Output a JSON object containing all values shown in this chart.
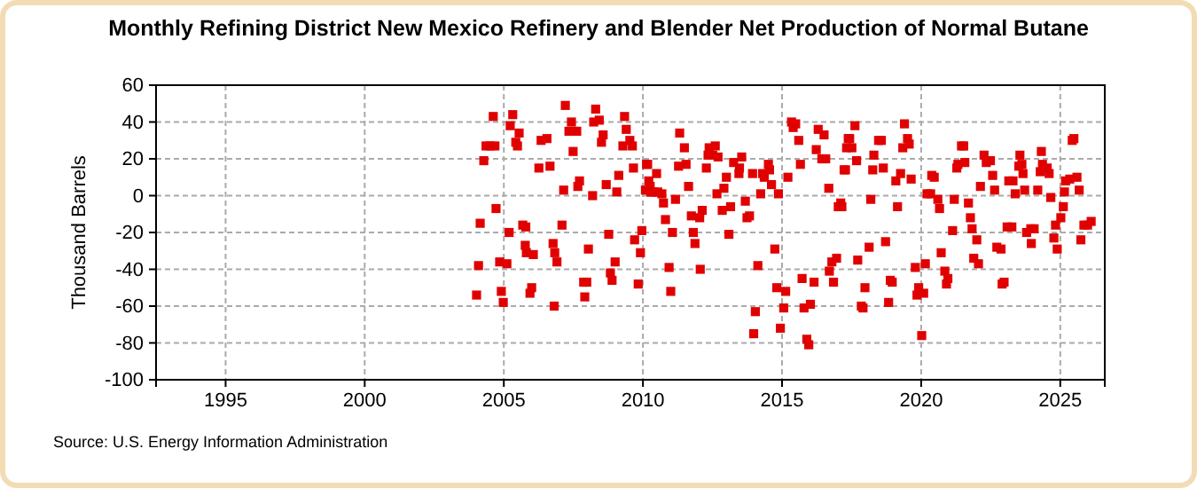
{
  "chart_data": {
    "type": "scatter",
    "title": "Monthly Refining District New Mexico Refinery and Blender Net Production of Normal Butane",
    "ylabel": "Thousand Barrels",
    "annotations": [
      "Source: U.S. Energy Information Administration"
    ],
    "xlim": [
      1992.5,
      2026.6
    ],
    "xticks": [
      1995,
      2000,
      2005,
      2010,
      2015,
      2020,
      2025
    ],
    "ylim": [
      -100,
      60
    ],
    "yticks": [
      -100,
      -80,
      -60,
      -40,
      -20,
      0,
      20,
      40,
      60
    ],
    "grid": true,
    "marker": "square",
    "series": [
      {
        "color": "#e00000",
        "x": [
          2004.02,
          2004.09,
          2004.15,
          2004.28,
          2004.36,
          2004.51,
          2004.62,
          2004.68,
          2004.72,
          2004.85,
          2004.91,
          2004.98,
          2005.11,
          2005.19,
          2005.23,
          2005.32,
          2005.43,
          2005.49,
          2005.55,
          2005.68,
          2005.77,
          2005.79,
          2005.81,
          2005.94,
          2006.0,
          2006.06,
          2006.26,
          2006.34,
          2006.55,
          2006.66,
          2006.77,
          2006.81,
          2006.83,
          2006.91,
          2007.09,
          2007.15,
          2007.21,
          2007.34,
          2007.43,
          2007.49,
          2007.62,
          2007.66,
          2007.72,
          2007.87,
          2007.91,
          2007.98,
          2008.04,
          2008.19,
          2008.23,
          2008.3,
          2008.43,
          2008.51,
          2008.57,
          2008.68,
          2008.77,
          2008.83,
          2008.89,
          2009.0,
          2009.06,
          2009.13,
          2009.28,
          2009.34,
          2009.4,
          2009.53,
          2009.62,
          2009.66,
          2009.7,
          2009.83,
          2009.91,
          2009.96,
          2010.09,
          2010.13,
          2010.17,
          2010.21,
          2010.26,
          2010.28,
          2010.32,
          2010.38,
          2010.49,
          2010.53,
          2010.68,
          2010.74,
          2010.81,
          2010.94,
          2011.0,
          2011.06,
          2011.17,
          2011.28,
          2011.32,
          2011.49,
          2011.55,
          2011.64,
          2011.74,
          2011.81,
          2011.87,
          2012.04,
          2012.06,
          2012.13,
          2012.28,
          2012.34,
          2012.38,
          2012.51,
          2012.6,
          2012.66,
          2012.7,
          2012.85,
          2012.91,
          2013.0,
          2013.09,
          2013.15,
          2013.26,
          2013.45,
          2013.47,
          2013.55,
          2013.68,
          2013.74,
          2013.83,
          2013.94,
          2013.98,
          2014.04,
          2014.13,
          2014.23,
          2014.3,
          2014.36,
          2014.51,
          2014.55,
          2014.62,
          2014.74,
          2014.81,
          2014.87,
          2014.94,
          2015.06,
          2015.13,
          2015.21,
          2015.34,
          2015.4,
          2015.49,
          2015.6,
          2015.66,
          2015.72,
          2015.79,
          2015.89,
          2015.96,
          2016.02,
          2016.15,
          2016.23,
          2016.3,
          2016.43,
          2016.51,
          2016.57,
          2016.68,
          2016.7,
          2016.79,
          2016.85,
          2016.96,
          2017.02,
          2017.11,
          2017.15,
          2017.23,
          2017.28,
          2017.32,
          2017.38,
          2017.43,
          2017.51,
          2017.62,
          2017.68,
          2017.72,
          2017.85,
          2017.91,
          2017.98,
          2018.13,
          2018.19,
          2018.26,
          2018.3,
          2018.47,
          2018.57,
          2018.64,
          2018.72,
          2018.83,
          2018.89,
          2018.96,
          2019.09,
          2019.15,
          2019.26,
          2019.34,
          2019.4,
          2019.51,
          2019.57,
          2019.64,
          2019.79,
          2019.85,
          2019.91,
          2020.02,
          2020.09,
          2020.15,
          2020.21,
          2020.34,
          2020.38,
          2020.47,
          2020.6,
          2020.66,
          2020.72,
          2020.85,
          2020.91,
          2020.96,
          2021.13,
          2021.19,
          2021.28,
          2021.32,
          2021.45,
          2021.53,
          2021.57,
          2021.7,
          2021.77,
          2021.83,
          2021.89,
          2022.0,
          2022.06,
          2022.13,
          2022.26,
          2022.34,
          2022.49,
          2022.57,
          2022.64,
          2022.72,
          2022.87,
          2022.91,
          2022.98,
          2023.09,
          2023.15,
          2023.26,
          2023.3,
          2023.38,
          2023.51,
          2023.55,
          2023.62,
          2023.66,
          2023.72,
          2023.79,
          2023.94,
          2023.96,
          2024.06,
          2024.19,
          2024.28,
          2024.32,
          2024.36,
          2024.53,
          2024.6,
          2024.66,
          2024.77,
          2024.83,
          2024.89,
          2025.02,
          2025.11,
          2025.15,
          2025.19,
          2025.34,
          2025.43,
          2025.49,
          2025.6,
          2025.68,
          2025.74,
          2025.85,
          2025.98,
          2026.11
        ],
        "values": [
          -54,
          -38,
          -15,
          19,
          27,
          27,
          43,
          27,
          -7,
          -36,
          -52,
          -58,
          -37,
          -20,
          38,
          44,
          29,
          27,
          34,
          -16,
          -27,
          -17,
          -31,
          -53,
          -50,
          -32,
          15,
          30,
          31,
          16,
          -26,
          -60,
          -31,
          -36,
          -16,
          3,
          49,
          35,
          40,
          24,
          35,
          5,
          8,
          -47,
          -55,
          -47,
          -29,
          0,
          40,
          47,
          41,
          29,
          33,
          6,
          -21,
          -42,
          -46,
          -36,
          2,
          11,
          27,
          43,
          36,
          30,
          27,
          15,
          -24,
          -48,
          -31,
          -19,
          3,
          17,
          17,
          8,
          5,
          2,
          2,
          2,
          12,
          2,
          1,
          -4,
          -13,
          -39,
          -52,
          -20,
          -2,
          16,
          34,
          26,
          17,
          5,
          -11,
          -20,
          -26,
          -12,
          -40,
          -8,
          15,
          22,
          26,
          22,
          27,
          1,
          21,
          -8,
          4,
          10,
          -21,
          -6,
          18,
          12,
          15,
          21,
          -3,
          -12,
          -11,
          12,
          -75,
          -63,
          -38,
          1,
          12,
          10,
          17,
          14,
          6,
          -29,
          -50,
          1,
          -72,
          -61,
          -52,
          10,
          40,
          37,
          39,
          30,
          17,
          -45,
          -61,
          -78,
          -81,
          -59,
          -47,
          25,
          36,
          20,
          33,
          20,
          4,
          -41,
          -36,
          -47,
          -34,
          -6,
          -4,
          -6,
          14,
          14,
          26,
          31,
          31,
          26,
          38,
          19,
          -35,
          -60,
          -61,
          -50,
          -28,
          -2,
          14,
          22,
          30,
          30,
          15,
          -25,
          -58,
          -46,
          -47,
          8,
          -6,
          12,
          26,
          39,
          31,
          28,
          9,
          -39,
          -54,
          -50,
          -76,
          -53,
          -37,
          1,
          1,
          11,
          10,
          -2,
          -7,
          -31,
          -41,
          -48,
          -45,
          -19,
          -2,
          15,
          17,
          27,
          27,
          18,
          -4,
          -12,
          -18,
          -34,
          -24,
          -37,
          5,
          22,
          18,
          19,
          11,
          3,
          -28,
          -29,
          -48,
          -47,
          -17,
          8,
          -17,
          8,
          1,
          16,
          22,
          17,
          12,
          3,
          -20,
          -18,
          -26,
          -18,
          3,
          13,
          24,
          17,
          15,
          12,
          -1,
          -23,
          -16,
          -29,
          -12,
          -6,
          2,
          8,
          9,
          30,
          31,
          10,
          3,
          -24,
          -16,
          -16,
          -14
        ]
      }
    ]
  }
}
